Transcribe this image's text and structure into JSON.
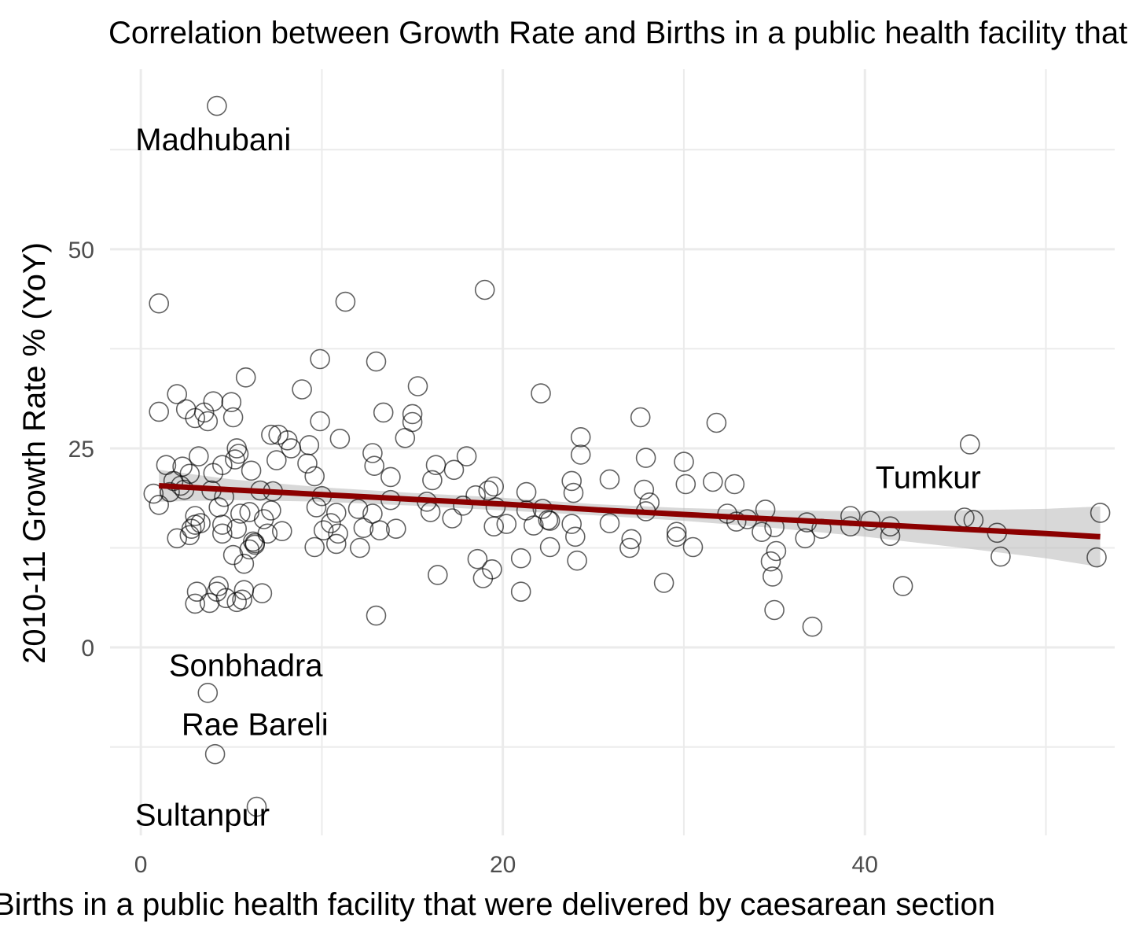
{
  "chart_data": {
    "type": "scatter",
    "title": "Correlation between Growth Rate and Births in a public health facility that were delivered by caesarean section",
    "xlabel": "Births in a public health facility that were delivered by caesarean section",
    "ylabel": "2010-11 Growth Rate % (YoY)",
    "xlim": [
      -1.7,
      53.8
    ],
    "ylim": [
      -23.6,
      72.6
    ],
    "x_major_ticks": [
      0,
      20,
      40
    ],
    "y_major_ticks": [
      0,
      25,
      50
    ],
    "x_minor_ticks": [
      10,
      30,
      50
    ],
    "y_minor_ticks": [
      -12.5,
      12.5,
      37.5,
      62.5
    ],
    "grid": true,
    "point_style": "hollow circles",
    "trend": {
      "method": "linear fit with confidence band",
      "color": "#8b0000",
      "band_color": "#bebebe",
      "x": [
        1.0,
        5,
        10,
        15,
        20,
        25,
        30,
        35,
        40,
        45,
        50,
        53
      ],
      "y": [
        20.3,
        19.8,
        19.2,
        18.6,
        18.0,
        17.3,
        16.7,
        16.1,
        15.5,
        14.9,
        14.3,
        13.9
      ],
      "lower": [
        18.3,
        18.5,
        18.3,
        17.8,
        17.2,
        16.6,
        15.9,
        15.0,
        13.9,
        12.6,
        11.2,
        10.1
      ],
      "upper": [
        22.3,
        21.1,
        20.1,
        19.4,
        18.8,
        18.0,
        17.5,
        17.2,
        17.1,
        17.2,
        17.4,
        17.7
      ]
    },
    "annotations": [
      {
        "text": "Madhubani",
        "x": 4.0,
        "y": 63.8
      },
      {
        "text": "Sonbhadra",
        "x": 5.8,
        "y": -2.2
      },
      {
        "text": "Rae Bareli",
        "x": 6.3,
        "y": -9.6
      },
      {
        "text": "Sultanpur",
        "x": 3.4,
        "y": -21.0
      },
      {
        "text": "Tumkur",
        "x": 43.5,
        "y": 21.4
      }
    ],
    "points": [
      [
        4.2,
        68.0
      ],
      [
        1.0,
        43.2
      ],
      [
        11.3,
        43.4
      ],
      [
        19.0,
        44.9
      ],
      [
        9.9,
        36.2
      ],
      [
        13.0,
        35.9
      ],
      [
        5.8,
        33.9
      ],
      [
        22.1,
        31.9
      ],
      [
        15.3,
        32.8
      ],
      [
        2.0,
        31.8
      ],
      [
        4.0,
        30.9
      ],
      [
        5.0,
        30.8
      ],
      [
        8.9,
        32.4
      ],
      [
        1.0,
        29.6
      ],
      [
        2.5,
        29.9
      ],
      [
        3.5,
        29.5
      ],
      [
        3.7,
        28.4
      ],
      [
        3.0,
        28.8
      ],
      [
        5.1,
        28.9
      ],
      [
        9.9,
        28.4
      ],
      [
        13.4,
        29.5
      ],
      [
        15.0,
        28.3
      ],
      [
        15.0,
        29.3
      ],
      [
        27.6,
        28.9
      ],
      [
        31.8,
        28.2
      ],
      [
        7.6,
        26.7
      ],
      [
        7.2,
        26.7
      ],
      [
        8.1,
        26.0
      ],
      [
        11.0,
        26.2
      ],
      [
        14.6,
        26.3
      ],
      [
        24.3,
        26.4
      ],
      [
        45.8,
        25.5
      ],
      [
        5.3,
        25.0
      ],
      [
        5.4,
        24.3
      ],
      [
        12.8,
        24.4
      ],
      [
        8.3,
        25.0
      ],
      [
        9.3,
        25.4
      ],
      [
        1.4,
        22.9
      ],
      [
        2.3,
        22.7
      ],
      [
        3.2,
        24.0
      ],
      [
        4.5,
        22.9
      ],
      [
        5.2,
        23.6
      ],
      [
        7.5,
        23.5
      ],
      [
        9.2,
        23.1
      ],
      [
        12.9,
        22.8
      ],
      [
        16.3,
        22.9
      ],
      [
        18.0,
        24.0
      ],
      [
        24.3,
        24.2
      ],
      [
        27.9,
        23.8
      ],
      [
        30.0,
        23.3
      ],
      [
        2.7,
        21.8
      ],
      [
        1.8,
        20.9
      ],
      [
        2.2,
        20.3
      ],
      [
        4.0,
        21.9
      ],
      [
        6.1,
        22.2
      ],
      [
        9.6,
        21.5
      ],
      [
        13.8,
        21.4
      ],
      [
        16.1,
        21.0
      ],
      [
        17.3,
        22.3
      ],
      [
        23.8,
        20.9
      ],
      [
        25.9,
        21.1
      ],
      [
        30.1,
        20.5
      ],
      [
        31.6,
        20.8
      ],
      [
        32.8,
        20.5
      ],
      [
        0.7,
        19.3
      ],
      [
        1.6,
        19.5
      ],
      [
        2.4,
        19.8
      ],
      [
        3.9,
        19.7
      ],
      [
        4.6,
        18.9
      ],
      [
        6.6,
        19.7
      ],
      [
        7.3,
        19.6
      ],
      [
        10.0,
        19.0
      ],
      [
        15.8,
        18.3
      ],
      [
        18.5,
        19.1
      ],
      [
        19.2,
        19.7
      ],
      [
        19.5,
        20.2
      ],
      [
        21.3,
        19.5
      ],
      [
        23.9,
        19.4
      ],
      [
        27.8,
        19.8
      ],
      [
        1.0,
        17.9
      ],
      [
        3.0,
        16.5
      ],
      [
        4.3,
        17.6
      ],
      [
        5.5,
        16.8
      ],
      [
        6.0,
        17.0
      ],
      [
        6.8,
        16.1
      ],
      [
        7.2,
        17.2
      ],
      [
        9.7,
        17.6
      ],
      [
        10.8,
        16.9
      ],
      [
        12.0,
        17.4
      ],
      [
        12.8,
        16.8
      ],
      [
        13.8,
        18.5
      ],
      [
        16.0,
        17.0
      ],
      [
        17.2,
        16.2
      ],
      [
        17.8,
        17.8
      ],
      [
        19.6,
        17.6
      ],
      [
        21.3,
        17.2
      ],
      [
        22.2,
        17.4
      ],
      [
        22.6,
        15.9
      ],
      [
        28.1,
        18.2
      ],
      [
        27.9,
        17.1
      ],
      [
        32.4,
        16.8
      ],
      [
        34.5,
        17.3
      ],
      [
        39.2,
        16.5
      ],
      [
        45.5,
        16.3
      ],
      [
        46.0,
        16.0
      ],
      [
        53.0,
        16.9
      ],
      [
        2.0,
        13.7
      ],
      [
        2.8,
        14.9
      ],
      [
        3.0,
        15.4
      ],
      [
        3.3,
        15.6
      ],
      [
        4.5,
        15.4
      ],
      [
        5.3,
        14.9
      ],
      [
        6.2,
        13.3
      ],
      [
        6.3,
        12.9
      ],
      [
        7.0,
        14.3
      ],
      [
        7.8,
        14.6
      ],
      [
        10.1,
        14.7
      ],
      [
        10.5,
        15.6
      ],
      [
        10.9,
        14.3
      ],
      [
        12.3,
        15.0
      ],
      [
        13.2,
        14.7
      ],
      [
        14.1,
        14.9
      ],
      [
        19.5,
        15.2
      ],
      [
        20.2,
        15.5
      ],
      [
        21.7,
        15.3
      ],
      [
        22.5,
        16.0
      ],
      [
        23.8,
        15.5
      ],
      [
        25.9,
        15.6
      ],
      [
        29.6,
        14.5
      ],
      [
        32.9,
        15.8
      ],
      [
        33.5,
        16.1
      ],
      [
        35.0,
        15.1
      ],
      [
        36.8,
        15.7
      ],
      [
        37.6,
        14.9
      ],
      [
        39.2,
        15.2
      ],
      [
        40.3,
        15.9
      ],
      [
        41.4,
        15.2
      ],
      [
        47.3,
        14.4
      ],
      [
        2.7,
        14.1
      ],
      [
        4.5,
        14.3
      ],
      [
        6.0,
        12.3
      ],
      [
        6.3,
        13.1
      ],
      [
        9.6,
        12.6
      ],
      [
        10.8,
        13.0
      ],
      [
        12.1,
        12.5
      ],
      [
        22.6,
        12.6
      ],
      [
        24.0,
        13.9
      ],
      [
        27.1,
        13.6
      ],
      [
        27.0,
        12.5
      ],
      [
        29.6,
        13.9
      ],
      [
        30.5,
        12.6
      ],
      [
        34.3,
        14.5
      ],
      [
        36.7,
        13.7
      ],
      [
        41.4,
        14.0
      ],
      [
        47.5,
        11.4
      ],
      [
        52.8,
        11.3
      ],
      [
        5.1,
        11.6
      ],
      [
        5.7,
        10.5
      ],
      [
        18.6,
        11.1
      ],
      [
        21.0,
        11.2
      ],
      [
        24.1,
        10.9
      ],
      [
        34.8,
        10.8
      ],
      [
        35.1,
        12.1
      ],
      [
        16.4,
        9.1
      ],
      [
        18.9,
        8.7
      ],
      [
        19.4,
        9.8
      ],
      [
        28.9,
        8.1
      ],
      [
        34.9,
        8.9
      ],
      [
        42.1,
        7.7
      ],
      [
        3.0,
        5.5
      ],
      [
        3.1,
        7.0
      ],
      [
        3.8,
        5.6
      ],
      [
        4.2,
        7.0
      ],
      [
        4.3,
        7.7
      ],
      [
        4.7,
        6.2
      ],
      [
        5.3,
        5.7
      ],
      [
        5.6,
        6.0
      ],
      [
        5.7,
        7.2
      ],
      [
        6.7,
        6.8
      ],
      [
        21.0,
        7.0
      ],
      [
        13.0,
        4.0
      ],
      [
        35.0,
        4.7
      ],
      [
        37.1,
        2.6
      ],
      [
        3.7,
        -5.7
      ],
      [
        4.1,
        -13.4
      ],
      [
        6.4,
        -20.0
      ]
    ]
  }
}
